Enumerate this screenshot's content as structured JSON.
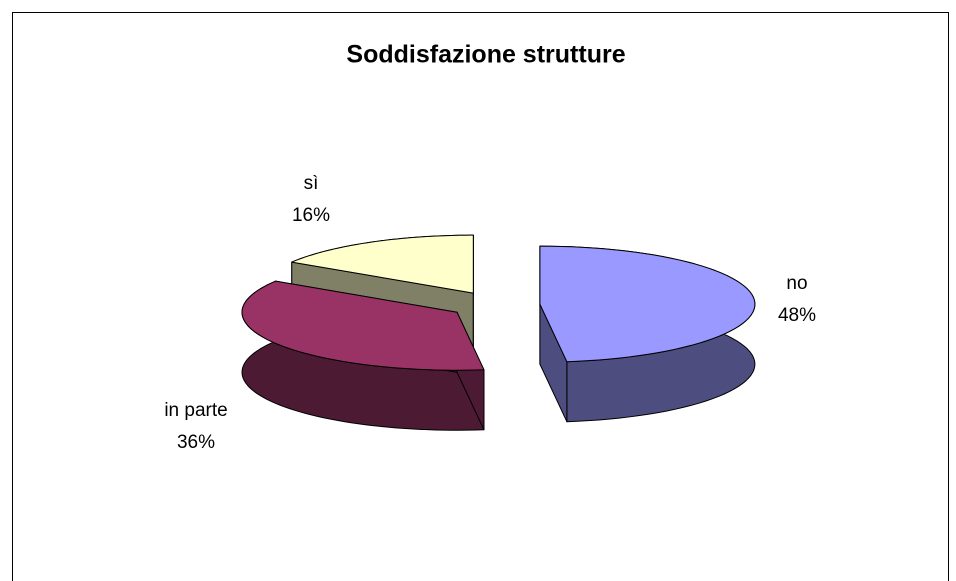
{
  "chart_data": {
    "type": "pie",
    "title": "Soddisfazione strutture",
    "categories": [
      "no",
      "in parte",
      "sì"
    ],
    "values": [
      48,
      36,
      16
    ],
    "value_labels": [
      "48%",
      "36%",
      "16%"
    ],
    "colors": [
      "#9999ff",
      "#993366",
      "#ffffcc"
    ]
  }
}
